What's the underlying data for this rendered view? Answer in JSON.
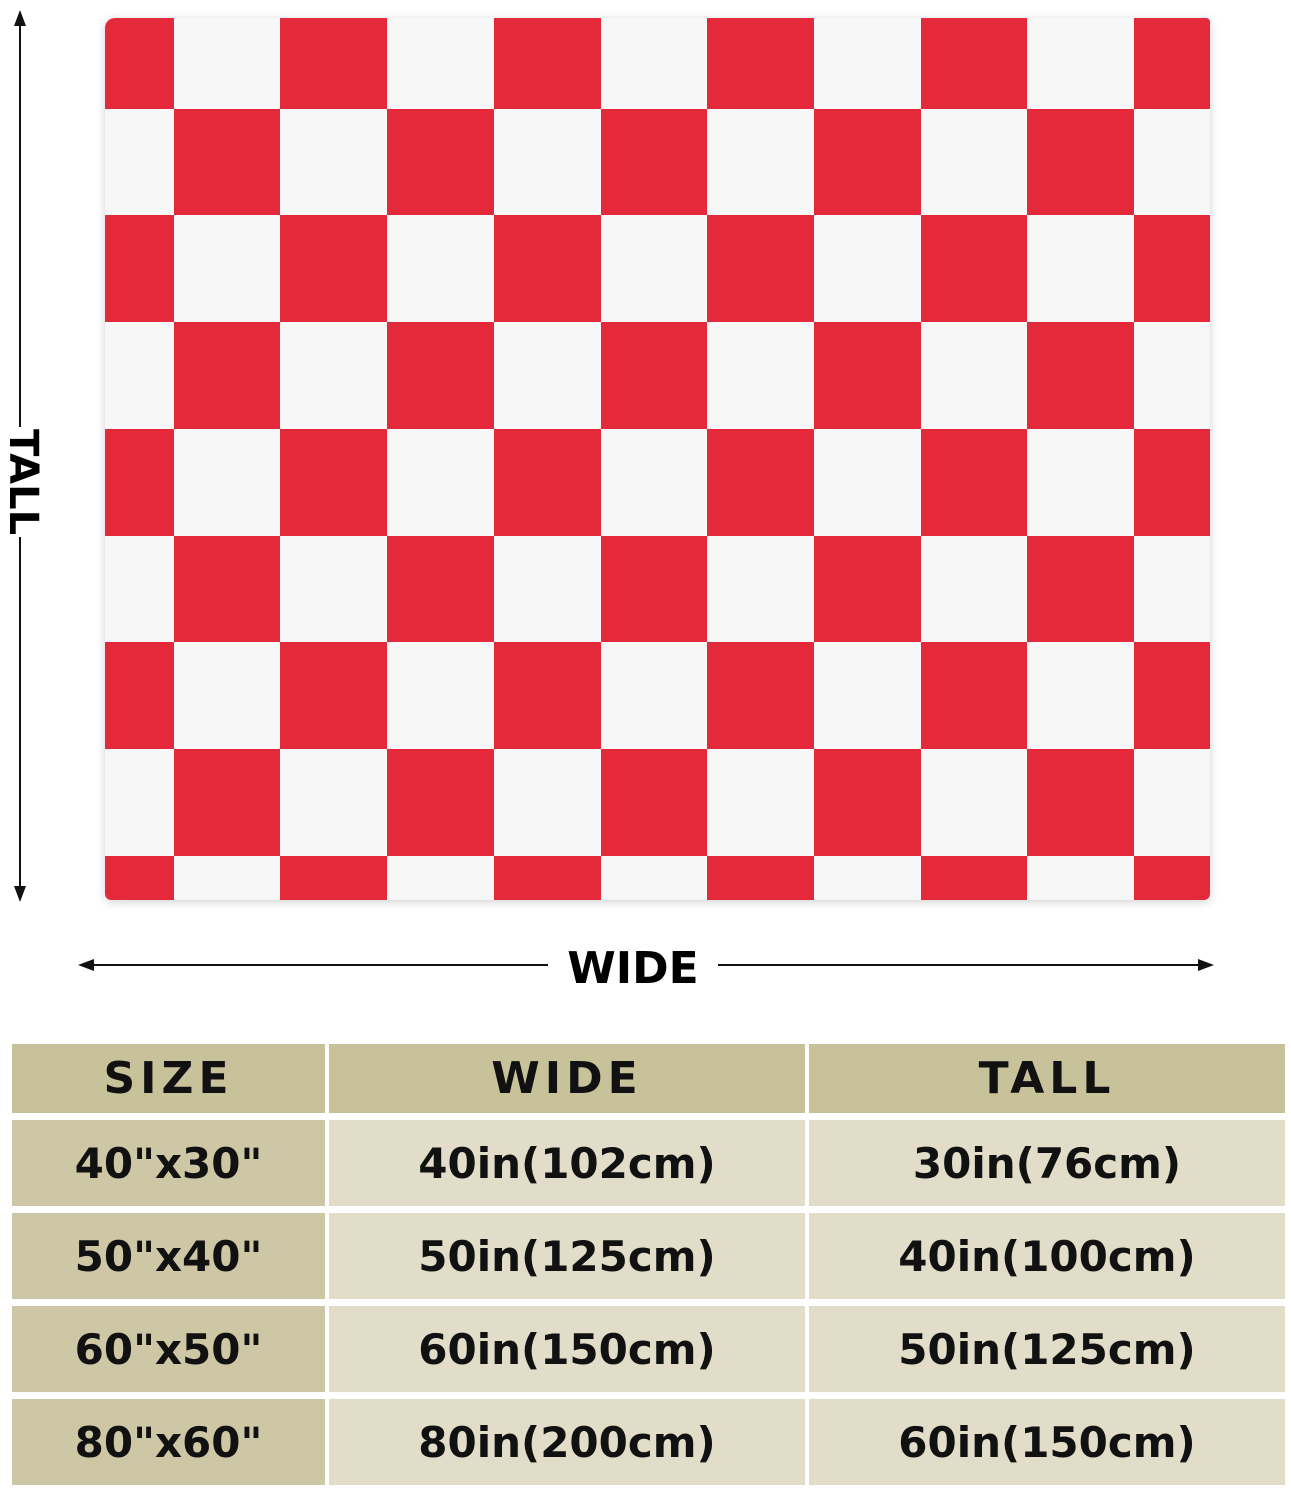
{
  "colors": {
    "red": "#e42a3a",
    "white": "#f7f7f7",
    "header_bg": "#c8c29b",
    "first_col_bg": "#cdc7a5",
    "cell_bg": "#e2ddc8"
  },
  "diagram": {
    "tall_label": "TALL",
    "wide_label": "WIDE"
  },
  "pattern": {
    "type": "checkerboard",
    "colors": [
      "red",
      "white"
    ]
  },
  "size_table": {
    "headers": [
      "SIZE",
      "WIDE",
      "TALL"
    ],
    "rows": [
      [
        "40\"x30\"",
        "40in(102cm)",
        "30in(76cm)"
      ],
      [
        "50\"x40\"",
        "50in(125cm)",
        "40in(100cm)"
      ],
      [
        "60\"x50\"",
        "60in(150cm)",
        "50in(125cm)"
      ],
      [
        "80\"x60\"",
        "80in(200cm)",
        "60in(150cm)"
      ]
    ]
  }
}
